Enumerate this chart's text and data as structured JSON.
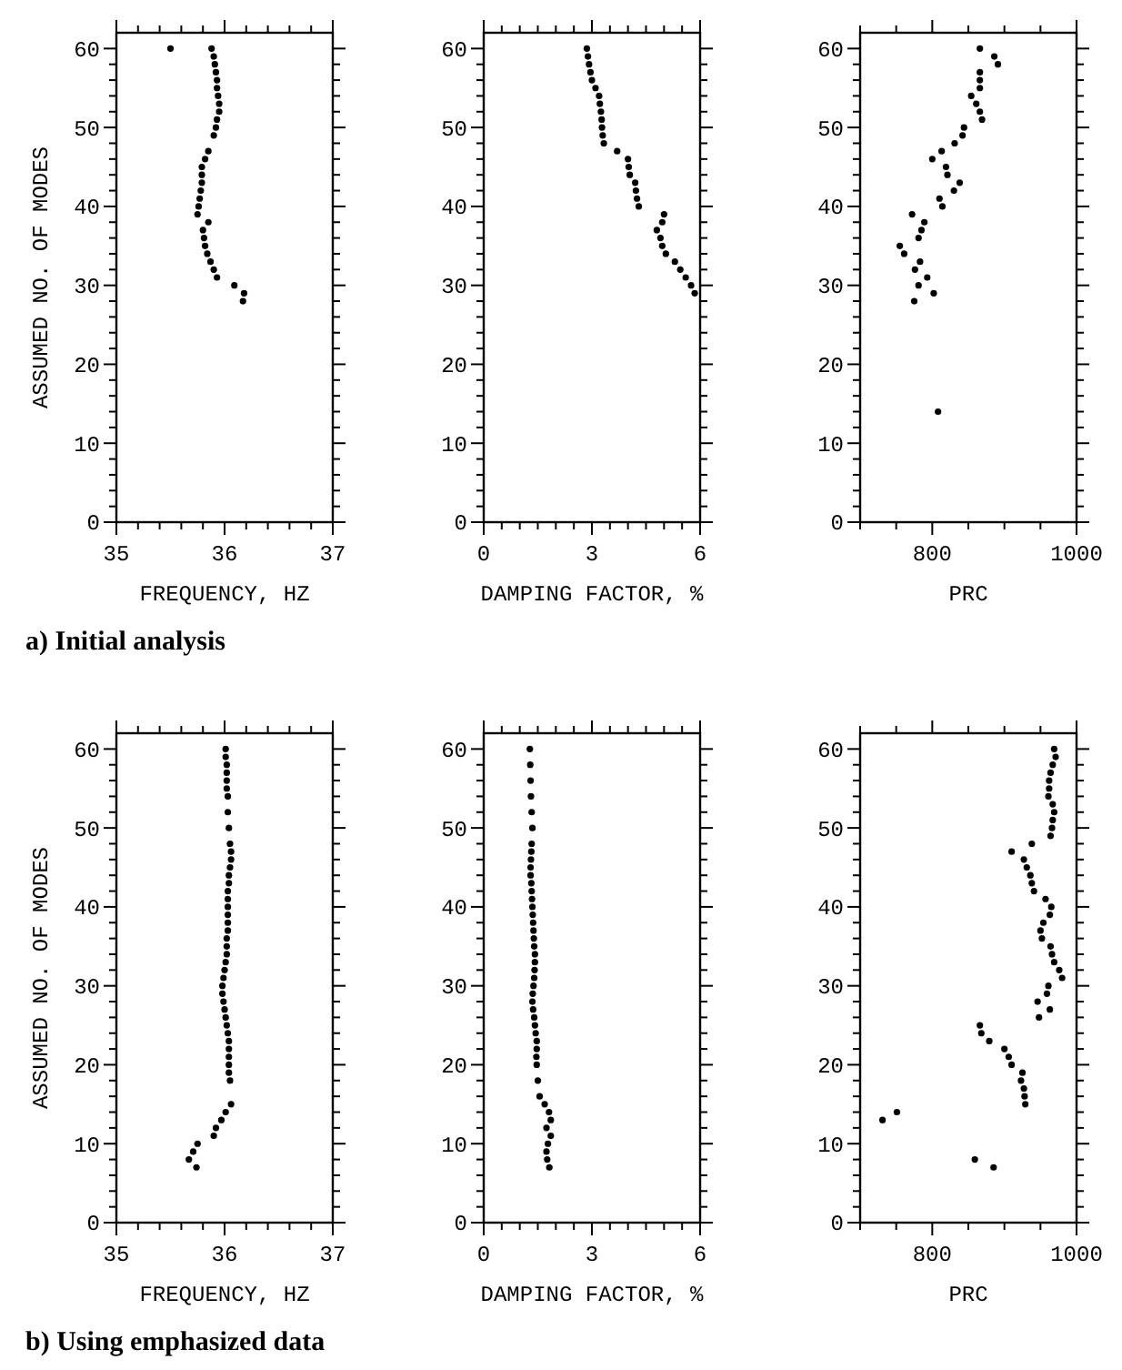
{
  "chart_data": [
    {
      "type": "scatter",
      "xlabel": "FREQUENCY, HZ",
      "ylabel": "ASSUMED NO. OF MODES",
      "marker": "circle",
      "annotations": [
        "a) Initial analysis"
      ],
      "xlim": [
        35,
        37
      ],
      "ylim": [
        0,
        62
      ],
      "xticks": [
        35,
        {
          "value": 35.2,
          "label": null
        },
        {
          "value": 35.4,
          "label": null
        },
        {
          "value": 35.6,
          "label": null
        },
        {
          "value": 35.8,
          "label": null
        },
        36,
        {
          "value": 36.2,
          "label": null
        },
        {
          "value": 36.4,
          "label": null
        },
        {
          "value": 36.6,
          "label": null
        },
        {
          "value": 36.8,
          "label": null
        },
        37
      ],
      "yticks": [
        0,
        {
          "value": 2,
          "label": null
        },
        {
          "value": 4,
          "label": null
        },
        {
          "value": 6,
          "label": null
        },
        {
          "value": 8,
          "label": null
        },
        10,
        {
          "value": 12,
          "label": null
        },
        {
          "value": 14,
          "label": null
        },
        {
          "value": 16,
          "label": null
        },
        {
          "value": 18,
          "label": null
        },
        20,
        {
          "value": 22,
          "label": null
        },
        {
          "value": 24,
          "label": null
        },
        {
          "value": 26,
          "label": null
        },
        {
          "value": 28,
          "label": null
        },
        30,
        {
          "value": 32,
          "label": null
        },
        {
          "value": 34,
          "label": null
        },
        {
          "value": 36,
          "label": null
        },
        {
          "value": 38,
          "label": null
        },
        40,
        {
          "value": 42,
          "label": null
        },
        {
          "value": 44,
          "label": null
        },
        {
          "value": 46,
          "label": null
        },
        {
          "value": 48,
          "label": null
        },
        50,
        {
          "value": 52,
          "label": null
        },
        {
          "value": 54,
          "label": null
        },
        {
          "value": 56,
          "label": null
        },
        {
          "value": 58,
          "label": null
        },
        60
      ],
      "series": [
        {
          "color": "#000000",
          "x": [
            35.5,
            35.88,
            35.9,
            35.91,
            35.92,
            35.93,
            35.93,
            35.94,
            35.95,
            35.95,
            35.93,
            35.92,
            35.9,
            35.85,
            35.82,
            35.79,
            35.79,
            35.79,
            35.78,
            35.77,
            35.76,
            35.75,
            35.85,
            35.8,
            35.81,
            35.82,
            35.84,
            35.87,
            35.9,
            35.93,
            36.09,
            36.18,
            36.17
          ],
          "values": [
            60,
            60,
            59,
            58,
            57,
            56,
            55,
            54,
            53,
            52,
            51,
            50,
            49,
            47,
            46,
            45,
            44,
            43,
            42,
            41,
            40,
            39,
            38,
            37,
            36,
            35,
            34,
            33,
            32,
            31,
            30,
            29,
            28
          ]
        }
      ]
    },
    {
      "type": "scatter",
      "xlabel": "DAMPING FACTOR, %",
      "marker": "circle",
      "xlim": [
        0,
        6
      ],
      "ylim": [
        0,
        62
      ],
      "xticks": [
        0,
        {
          "value": 0.5,
          "label": null
        },
        {
          "value": 1,
          "label": null
        },
        {
          "value": 1.5,
          "label": null
        },
        {
          "value": 2,
          "label": null
        },
        {
          "value": 2.5,
          "label": null
        },
        3,
        {
          "value": 3.5,
          "label": null
        },
        {
          "value": 4,
          "label": null
        },
        {
          "value": 4.5,
          "label": null
        },
        {
          "value": 5,
          "label": null
        },
        {
          "value": 5.5,
          "label": null
        },
        6
      ],
      "yticks": [
        0,
        {
          "value": 2,
          "label": null
        },
        {
          "value": 4,
          "label": null
        },
        {
          "value": 6,
          "label": null
        },
        {
          "value": 8,
          "label": null
        },
        10,
        {
          "value": 12,
          "label": null
        },
        {
          "value": 14,
          "label": null
        },
        {
          "value": 16,
          "label": null
        },
        {
          "value": 18,
          "label": null
        },
        20,
        {
          "value": 22,
          "label": null
        },
        {
          "value": 24,
          "label": null
        },
        {
          "value": 26,
          "label": null
        },
        {
          "value": 28,
          "label": null
        },
        30,
        {
          "value": 32,
          "label": null
        },
        {
          "value": 34,
          "label": null
        },
        {
          "value": 36,
          "label": null
        },
        {
          "value": 38,
          "label": null
        },
        40,
        {
          "value": 42,
          "label": null
        },
        {
          "value": 44,
          "label": null
        },
        {
          "value": 46,
          "label": null
        },
        {
          "value": 48,
          "label": null
        },
        50,
        {
          "value": 52,
          "label": null
        },
        {
          "value": 54,
          "label": null
        },
        {
          "value": 56,
          "label": null
        },
        {
          "value": 58,
          "label": null
        },
        60
      ],
      "series": [
        {
          "color": "#000000",
          "x": [
            2.86,
            2.89,
            2.92,
            2.96,
            3.0,
            3.1,
            3.2,
            3.22,
            3.25,
            3.27,
            3.28,
            3.3,
            3.33,
            3.7,
            4.0,
            4.02,
            4.05,
            4.2,
            4.22,
            4.25,
            4.3,
            5.0,
            4.95,
            4.8,
            4.9,
            4.95,
            5.05,
            5.3,
            5.45,
            5.6,
            5.75,
            5.85
          ],
          "values": [
            60,
            59,
            58,
            57,
            56,
            55,
            54,
            53,
            52,
            51,
            50,
            49,
            48,
            47,
            46,
            45,
            44,
            43,
            42,
            41,
            40,
            39,
            38,
            37,
            36,
            35,
            34,
            33,
            32,
            31,
            30,
            29
          ]
        }
      ]
    },
    {
      "type": "scatter",
      "xlabel": "PRC",
      "marker": "circle",
      "xlim": [
        700,
        1000
      ],
      "ylim": [
        0,
        62
      ],
      "xticks": [
        {
          "value": 700,
          "label": null
        },
        {
          "value": 750,
          "label": null
        },
        800,
        {
          "value": 850,
          "label": null
        },
        {
          "value": 900,
          "label": null
        },
        {
          "value": 950,
          "label": null
        },
        1000
      ],
      "yticks": [
        0,
        {
          "value": 2,
          "label": null
        },
        {
          "value": 4,
          "label": null
        },
        {
          "value": 6,
          "label": null
        },
        {
          "value": 8,
          "label": null
        },
        10,
        {
          "value": 12,
          "label": null
        },
        {
          "value": 14,
          "label": null
        },
        {
          "value": 16,
          "label": null
        },
        {
          "value": 18,
          "label": null
        },
        20,
        {
          "value": 22,
          "label": null
        },
        {
          "value": 24,
          "label": null
        },
        {
          "value": 26,
          "label": null
        },
        {
          "value": 28,
          "label": null
        },
        30,
        {
          "value": 32,
          "label": null
        },
        {
          "value": 34,
          "label": null
        },
        {
          "value": 36,
          "label": null
        },
        {
          "value": 38,
          "label": null
        },
        40,
        {
          "value": 42,
          "label": null
        },
        {
          "value": 44,
          "label": null
        },
        {
          "value": 46,
          "label": null
        },
        {
          "value": 48,
          "label": null
        },
        50,
        {
          "value": 52,
          "label": null
        },
        {
          "value": 54,
          "label": null
        },
        {
          "value": 56,
          "label": null
        },
        {
          "value": 58,
          "label": null
        },
        60
      ],
      "series": [
        {
          "color": "#000000",
          "x": [
            866,
            886,
            891,
            866,
            866,
            866,
            854,
            861,
            866,
            869,
            844,
            842,
            831,
            813,
            800,
            819,
            821,
            838,
            830,
            810,
            814,
            772,
            789,
            785,
            781,
            755,
            761,
            783,
            776,
            793,
            781,
            802,
            775,
            808
          ],
          "values": [
            60,
            59,
            58,
            57,
            56,
            55,
            54,
            53,
            52,
            51,
            50,
            49,
            48,
            47,
            46,
            45,
            44,
            43,
            42,
            41,
            40,
            39,
            38,
            37,
            36,
            35,
            34,
            33,
            32,
            31,
            30,
            29,
            28,
            14
          ]
        }
      ]
    },
    {
      "type": "scatter",
      "xlabel": "FREQUENCY, HZ",
      "ylabel": "ASSUMED NO. OF MODES",
      "marker": "circle",
      "annotations": [
        "b) Using emphasized data"
      ],
      "xlim": [
        35,
        37
      ],
      "ylim": [
        0,
        62
      ],
      "xticks": [
        35,
        {
          "value": 35.2,
          "label": null
        },
        {
          "value": 35.4,
          "label": null
        },
        {
          "value": 35.6,
          "label": null
        },
        {
          "value": 35.8,
          "label": null
        },
        36,
        {
          "value": 36.2,
          "label": null
        },
        {
          "value": 36.4,
          "label": null
        },
        {
          "value": 36.6,
          "label": null
        },
        {
          "value": 36.8,
          "label": null
        },
        37
      ],
      "yticks": [
        0,
        {
          "value": 2,
          "label": null
        },
        {
          "value": 4,
          "label": null
        },
        {
          "value": 6,
          "label": null
        },
        {
          "value": 8,
          "label": null
        },
        10,
        {
          "value": 12,
          "label": null
        },
        {
          "value": 14,
          "label": null
        },
        {
          "value": 16,
          "label": null
        },
        {
          "value": 18,
          "label": null
        },
        20,
        {
          "value": 22,
          "label": null
        },
        {
          "value": 24,
          "label": null
        },
        {
          "value": 26,
          "label": null
        },
        {
          "value": 28,
          "label": null
        },
        30,
        {
          "value": 32,
          "label": null
        },
        {
          "value": 34,
          "label": null
        },
        {
          "value": 36,
          "label": null
        },
        {
          "value": 38,
          "label": null
        },
        40,
        {
          "value": 42,
          "label": null
        },
        {
          "value": 44,
          "label": null
        },
        {
          "value": 46,
          "label": null
        },
        {
          "value": 48,
          "label": null
        },
        50,
        {
          "value": 52,
          "label": null
        },
        {
          "value": 54,
          "label": null
        },
        {
          "value": 56,
          "label": null
        },
        {
          "value": 58,
          "label": null
        },
        60
      ],
      "series": [
        {
          "color": "#000000",
          "x": [
            36.01,
            36.01,
            36.02,
            36.02,
            36.02,
            36.02,
            36.03,
            36.03,
            36.04,
            36.05,
            36.06,
            36.06,
            36.05,
            36.04,
            36.04,
            36.03,
            36.03,
            36.03,
            36.03,
            36.03,
            36.03,
            36.02,
            36.02,
            36.02,
            36.01,
            36.0,
            35.99,
            35.98,
            35.98,
            35.99,
            36.0,
            36.01,
            36.02,
            36.03,
            36.04,
            36.04,
            36.04,
            36.04,
            36.04,
            36.05,
            36.06,
            36.01,
            35.97,
            35.92,
            35.9,
            35.75,
            35.71,
            35.67,
            35.74
          ],
          "values": [
            60,
            59,
            58,
            57,
            56,
            55,
            54,
            52,
            50,
            48,
            47,
            46,
            45,
            44,
            43,
            42,
            41,
            40,
            39,
            38,
            37,
            36,
            35,
            34,
            33,
            32,
            31,
            30,
            29,
            28,
            27,
            26,
            25,
            24,
            23,
            22,
            21,
            20,
            19,
            18,
            15,
            14,
            13,
            12,
            11,
            10,
            9,
            8,
            7
          ]
        }
      ]
    },
    {
      "type": "scatter",
      "xlabel": "DAMPING FACTOR, %",
      "marker": "circle",
      "xlim": [
        0,
        6
      ],
      "ylim": [
        0,
        62
      ],
      "xticks": [
        0,
        {
          "value": 0.5,
          "label": null
        },
        {
          "value": 1,
          "label": null
        },
        {
          "value": 1.5,
          "label": null
        },
        {
          "value": 2,
          "label": null
        },
        {
          "value": 2.5,
          "label": null
        },
        3,
        {
          "value": 3.5,
          "label": null
        },
        {
          "value": 4,
          "label": null
        },
        {
          "value": 4.5,
          "label": null
        },
        {
          "value": 5,
          "label": null
        },
        {
          "value": 5.5,
          "label": null
        },
        6
      ],
      "yticks": [
        0,
        {
          "value": 2,
          "label": null
        },
        {
          "value": 4,
          "label": null
        },
        {
          "value": 6,
          "label": null
        },
        {
          "value": 8,
          "label": null
        },
        10,
        {
          "value": 12,
          "label": null
        },
        {
          "value": 14,
          "label": null
        },
        {
          "value": 16,
          "label": null
        },
        {
          "value": 18,
          "label": null
        },
        20,
        {
          "value": 22,
          "label": null
        },
        {
          "value": 24,
          "label": null
        },
        {
          "value": 26,
          "label": null
        },
        {
          "value": 28,
          "label": null
        },
        30,
        {
          "value": 32,
          "label": null
        },
        {
          "value": 34,
          "label": null
        },
        {
          "value": 36,
          "label": null
        },
        {
          "value": 38,
          "label": null
        },
        40,
        {
          "value": 42,
          "label": null
        },
        {
          "value": 44,
          "label": null
        },
        {
          "value": 46,
          "label": null
        },
        {
          "value": 48,
          "label": null
        },
        50,
        {
          "value": 52,
          "label": null
        },
        {
          "value": 54,
          "label": null
        },
        {
          "value": 56,
          "label": null
        },
        {
          "value": 58,
          "label": null
        },
        60
      ],
      "series": [
        {
          "color": "#000000",
          "x": [
            1.28,
            1.29,
            1.3,
            1.31,
            1.33,
            1.35,
            1.33,
            1.32,
            1.31,
            1.3,
            1.3,
            1.32,
            1.33,
            1.34,
            1.35,
            1.36,
            1.37,
            1.38,
            1.39,
            1.4,
            1.42,
            1.42,
            1.41,
            1.4,
            1.38,
            1.36,
            1.35,
            1.37,
            1.4,
            1.42,
            1.44,
            1.47,
            1.47,
            1.46,
            1.47,
            1.5,
            1.55,
            1.69,
            1.81,
            1.86,
            1.74,
            1.86,
            1.78,
            1.74,
            1.76,
            1.82
          ],
          "values": [
            60,
            58,
            56,
            54,
            52,
            50,
            48,
            47,
            46,
            45,
            44,
            43,
            42,
            41,
            40,
            39,
            38,
            37,
            36,
            35,
            34,
            33,
            32,
            31,
            30,
            29,
            28,
            27,
            26,
            25,
            24,
            23,
            22,
            21,
            20,
            18,
            16,
            15,
            14,
            13,
            12,
            11,
            10,
            9,
            8,
            7
          ]
        }
      ]
    },
    {
      "type": "scatter",
      "xlabel": "PRC",
      "marker": "circle",
      "xlim": [
        700,
        1000
      ],
      "ylim": [
        0,
        62
      ],
      "xticks": [
        {
          "value": 700,
          "label": null
        },
        {
          "value": 750,
          "label": null
        },
        800,
        {
          "value": 850,
          "label": null
        },
        {
          "value": 900,
          "label": null
        },
        {
          "value": 950,
          "label": null
        },
        1000
      ],
      "yticks": [
        0,
        {
          "value": 2,
          "label": null
        },
        {
          "value": 4,
          "label": null
        },
        {
          "value": 6,
          "label": null
        },
        {
          "value": 8,
          "label": null
        },
        10,
        {
          "value": 12,
          "label": null
        },
        {
          "value": 14,
          "label": null
        },
        {
          "value": 16,
          "label": null
        },
        {
          "value": 18,
          "label": null
        },
        20,
        {
          "value": 22,
          "label": null
        },
        {
          "value": 24,
          "label": null
        },
        {
          "value": 26,
          "label": null
        },
        {
          "value": 28,
          "label": null
        },
        30,
        {
          "value": 32,
          "label": null
        },
        {
          "value": 34,
          "label": null
        },
        {
          "value": 36,
          "label": null
        },
        {
          "value": 38,
          "label": null
        },
        40,
        {
          "value": 42,
          "label": null
        },
        {
          "value": 44,
          "label": null
        },
        {
          "value": 46,
          "label": null
        },
        {
          "value": 48,
          "label": null
        },
        50,
        {
          "value": 52,
          "label": null
        },
        {
          "value": 54,
          "label": null
        },
        {
          "value": 56,
          "label": null
        },
        {
          "value": 58,
          "label": null
        },
        60
      ],
      "series": [
        {
          "color": "#000000",
          "x": [
            969,
            971,
            967,
            964,
            962,
            962,
            961,
            967,
            969,
            967,
            966,
            964,
            938,
            910,
            927,
            931,
            936,
            938,
            941,
            957,
            965,
            963,
            954,
            950,
            952,
            964,
            966,
            969,
            976,
            980,
            961,
            959,
            946,
            963,
            948,
            866,
            868,
            879,
            900,
            906,
            910,
            925,
            923,
            927,
            928,
            929,
            751,
            731,
            859,
            885
          ],
          "values": [
            60,
            59,
            58,
            57,
            56,
            55,
            54,
            53,
            52,
            51,
            50,
            49,
            48,
            47,
            46,
            45,
            44,
            43,
            42,
            41,
            40,
            39,
            38,
            37,
            36,
            35,
            34,
            33,
            32,
            31,
            30,
            29,
            28,
            27,
            26,
            25,
            24,
            23,
            22,
            21,
            20,
            19,
            18,
            17,
            16,
            15,
            14,
            13,
            8,
            7
          ]
        }
      ]
    }
  ]
}
